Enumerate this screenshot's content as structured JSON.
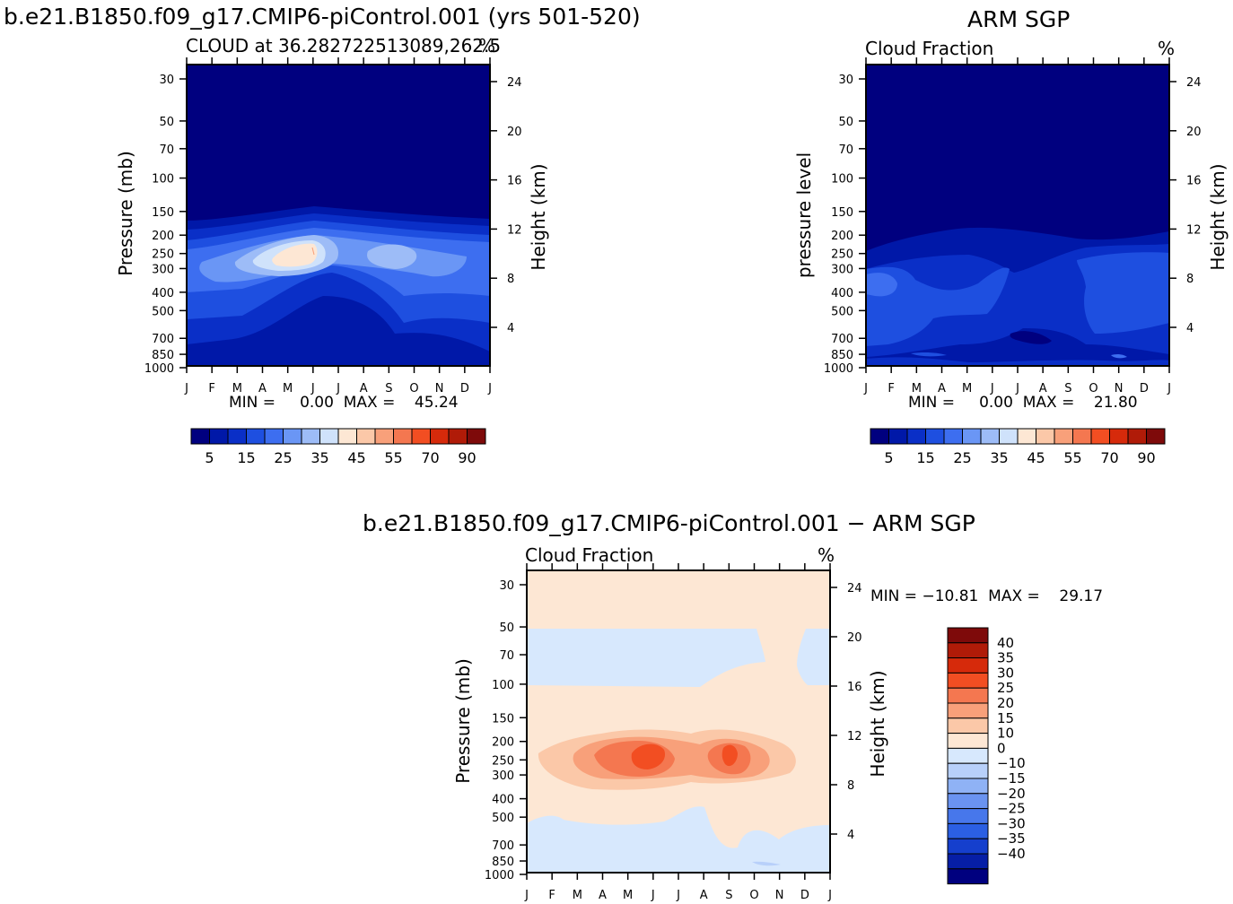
{
  "figure": {
    "model_title": "b.e21.B1850.f09_g17.CMIP6-piControl.001 (yrs 501-520)",
    "obs_title": "ARM SGP",
    "diff_title": "b.e21.B1850.f09_g17.CMIP6-piControl.001 − ARM SGP"
  },
  "panels": {
    "model": {
      "left_label": "CLOUD at 36.282722513089,262.5",
      "right_label": "%",
      "ylabel": "Pressure (mb)",
      "y2label": "Height (km)",
      "stats": "MIN =     0.00  MAX =    45.24"
    },
    "obs": {
      "left_label": "Cloud Fraction",
      "right_label": "%",
      "ylabel": "pressure level",
      "y2label": "Height (km)",
      "stats": "MIN =     0.00  MAX =    21.80"
    },
    "diff": {
      "left_label": "Cloud Fraction",
      "right_label": "%",
      "ylabel": "Pressure (mb)",
      "y2label": "Height (km)",
      "stats": "MIN = −10.81  MAX =    29.17"
    }
  },
  "colorbars": {
    "absolute": {
      "colors": [
        "#00007f",
        "#0018a8",
        "#0a2fc7",
        "#1e4fe0",
        "#3d6ef0",
        "#6a96f5",
        "#9dbcf7",
        "#cfe2fb",
        "#fde7d4",
        "#fbc8a8",
        "#f8a07a",
        "#f47750",
        "#f24e22",
        "#d62a0b",
        "#b01b08",
        "#7e0a0a"
      ],
      "labels": [
        "5",
        "15",
        "25",
        "35",
        "45",
        "55",
        "70",
        "90"
      ]
    },
    "difference": {
      "colors": [
        "#7e0a0a",
        "#b01b08",
        "#d62a0b",
        "#f24e22",
        "#f47750",
        "#f8a07a",
        "#fbc8a8",
        "#fde7d4",
        "#d7e8fd",
        "#b8d0fa",
        "#8fb2f5",
        "#6a93f0",
        "#4777eb",
        "#2b5fe3",
        "#153fcd",
        "#061ea6",
        "#00007f"
      ],
      "labels": [
        "40",
        "35",
        "30",
        "25",
        "20",
        "15",
        "10",
        "0",
        "−10",
        "−15",
        "−20",
        "−25",
        "−30",
        "−35",
        "−40"
      ]
    }
  },
  "chart_data": [
    {
      "type": "heatmap",
      "name": "model",
      "title": "b.e21.B1850.f09_g17.CMIP6-piControl.001 (yrs 501-520)",
      "x": [
        "J",
        "F",
        "M",
        "A",
        "M",
        "J",
        "J",
        "A",
        "S",
        "O",
        "N",
        "D",
        "J"
      ],
      "y_pressure_mb": [
        30,
        50,
        70,
        100,
        150,
        200,
        250,
        300,
        400,
        500,
        700,
        850,
        1000
      ],
      "y2_height_km": [
        4,
        8,
        12,
        16,
        20,
        24
      ],
      "ylabel": "Pressure (mb)",
      "y2label": "Height (km)",
      "units": "%",
      "min": 0.0,
      "max": 45.24
    },
    {
      "type": "heatmap",
      "name": "obs",
      "title": "ARM SGP",
      "x": [
        "J",
        "F",
        "M",
        "A",
        "M",
        "J",
        "J",
        "A",
        "S",
        "O",
        "N",
        "D",
        "J"
      ],
      "y_pressure_mb": [
        30,
        50,
        70,
        100,
        150,
        200,
        250,
        300,
        400,
        500,
        700,
        850,
        1000
      ],
      "y2_height_km": [
        4,
        8,
        12,
        16,
        20,
        24
      ],
      "ylabel": "pressure level",
      "y2label": "Height (km)",
      "units": "%",
      "min": 0.0,
      "max": 21.8
    },
    {
      "type": "heatmap",
      "name": "difference",
      "title": "b.e21.B1850.f09_g17.CMIP6-piControl.001 − ARM SGP",
      "x": [
        "J",
        "F",
        "M",
        "A",
        "M",
        "J",
        "J",
        "A",
        "S",
        "O",
        "N",
        "D",
        "J"
      ],
      "y_pressure_mb": [
        30,
        50,
        70,
        100,
        150,
        200,
        250,
        300,
        400,
        500,
        700,
        850,
        1000
      ],
      "y2_height_km": [
        4,
        8,
        12,
        16,
        20,
        24
      ],
      "ylabel": "Pressure (mb)",
      "y2label": "Height (km)",
      "units": "%",
      "min": -10.81,
      "max": 29.17
    }
  ]
}
